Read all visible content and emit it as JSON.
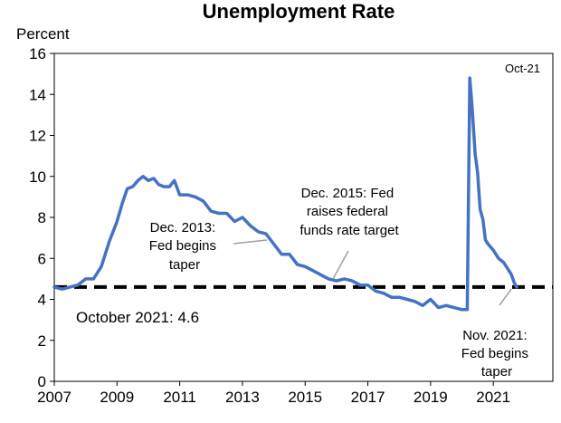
{
  "chart_data": {
    "type": "line",
    "title": "Unemployment Rate",
    "ylabel": "Percent",
    "corner_label": "Oct-21",
    "xlim": [
      2007,
      2022.9
    ],
    "ylim": [
      0,
      16
    ],
    "x_ticks": [
      2007,
      2009,
      2011,
      2013,
      2015,
      2017,
      2019,
      2021
    ],
    "y_ticks": [
      0,
      2,
      4,
      6,
      8,
      10,
      12,
      14,
      16
    ],
    "grid": false,
    "series_color": "#4472C4",
    "series": [
      {
        "x": [
          2007.0,
          2007.25,
          2007.5,
          2007.75,
          2008.0,
          2008.25,
          2008.5,
          2008.75,
          2009.0,
          2009.17,
          2009.33,
          2009.5,
          2009.67,
          2009.83,
          2010.0,
          2010.17,
          2010.33,
          2010.5,
          2010.67,
          2010.83,
          2011.0,
          2011.25,
          2011.5,
          2011.75,
          2012.0,
          2012.25,
          2012.5,
          2012.75,
          2013.0,
          2013.25,
          2013.5,
          2013.75,
          2014.0,
          2014.25,
          2014.5,
          2014.75,
          2015.0,
          2015.25,
          2015.5,
          2015.75,
          2016.0,
          2016.25,
          2016.5,
          2016.75,
          2017.0,
          2017.25,
          2017.5,
          2017.75,
          2018.0,
          2018.25,
          2018.5,
          2018.75,
          2019.0,
          2019.25,
          2019.5,
          2019.75,
          2020.0,
          2020.17,
          2020.25,
          2020.33,
          2020.42,
          2020.5,
          2020.58,
          2020.67,
          2020.75,
          2020.83,
          2021.0,
          2021.17,
          2021.33,
          2021.5,
          2021.58,
          2021.67,
          2021.75
        ],
        "y": [
          4.6,
          4.5,
          4.6,
          4.7,
          5.0,
          5.0,
          5.6,
          6.8,
          7.8,
          8.7,
          9.4,
          9.5,
          9.8,
          10.0,
          9.8,
          9.9,
          9.6,
          9.5,
          9.5,
          9.8,
          9.1,
          9.1,
          9.0,
          8.8,
          8.3,
          8.2,
          8.2,
          7.8,
          8.0,
          7.6,
          7.3,
          7.2,
          6.7,
          6.2,
          6.2,
          5.7,
          5.6,
          5.4,
          5.2,
          5.0,
          4.9,
          5.0,
          4.9,
          4.7,
          4.7,
          4.4,
          4.3,
          4.1,
          4.1,
          4.0,
          3.9,
          3.7,
          4.0,
          3.6,
          3.7,
          3.6,
          3.5,
          3.5,
          14.8,
          13.3,
          11.1,
          10.2,
          8.4,
          7.9,
          6.9,
          6.7,
          6.4,
          6.0,
          5.8,
          5.4,
          5.2,
          4.8,
          4.6
        ]
      }
    ],
    "reference_line": {
      "y": 4.6,
      "label": "October 2021: 4.6",
      "style": "dashed",
      "color": "#000000"
    },
    "annotations": [
      {
        "lines": [
          "Dec. 2013:",
          "Fed begins",
          "taper"
        ],
        "x": 2013.92,
        "y": 7.0
      },
      {
        "lines": [
          "Dec. 2015: Fed",
          "raises federal",
          "funds rate target"
        ],
        "x": 2015.92,
        "y": 5.0
      },
      {
        "lines": [
          "Nov. 2021:",
          "Fed begins",
          "taper"
        ],
        "x": 2021.83,
        "y": 4.6
      }
    ]
  }
}
